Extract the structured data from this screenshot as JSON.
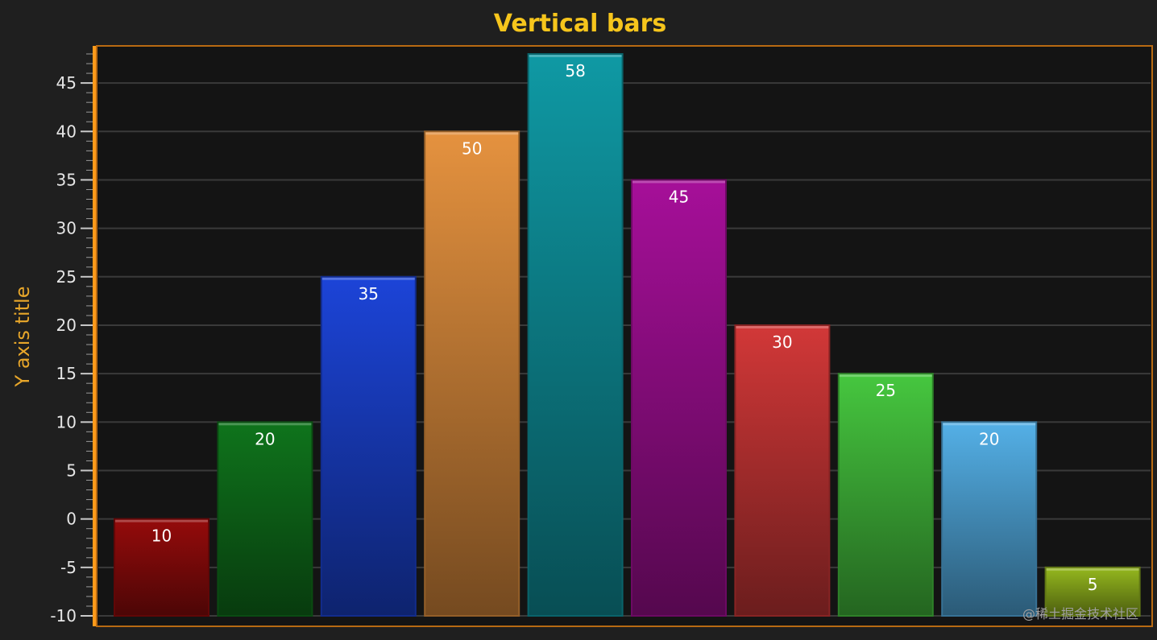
{
  "chart_data": {
    "type": "bar",
    "title": "Vertical bars",
    "ylabel": "Y axis title",
    "xlabel": "",
    "ylim": [
      -10,
      48
    ],
    "yticks": [
      -10,
      -5,
      0,
      5,
      10,
      15,
      20,
      25,
      30,
      35,
      40,
      45
    ],
    "grid": true,
    "bars": [
      {
        "value": 0,
        "label": "10",
        "color": "#8a0a0a"
      },
      {
        "value": 10,
        "label": "20",
        "color": "#0e6b1a"
      },
      {
        "value": 25,
        "label": "35",
        "color": "#1a3fc8"
      },
      {
        "value": 40,
        "label": "50",
        "color": "#d4873a"
      },
      {
        "value": 48,
        "label": "58",
        "color": "#0e8e98"
      },
      {
        "value": 35,
        "label": "45",
        "color": "#9a0e8e"
      },
      {
        "value": 20,
        "label": "30",
        "color": "#c23434"
      },
      {
        "value": 15,
        "label": "25",
        "color": "#41b83a"
      },
      {
        "value": 10,
        "label": "20",
        "color": "#4ea3d6"
      },
      {
        "value": -5,
        "label": "5",
        "color": "#8aaa1c"
      }
    ]
  },
  "colors": {
    "background": "#1f1f1f",
    "plot_background": "#141414",
    "plot_border": "#b86a12",
    "axis_line": "#ff9a1a",
    "grid": "#3a3a3a",
    "title": "#f6c51c",
    "ylabel": "#e7a62a"
  },
  "watermark": "@稀土掘金技术社区"
}
